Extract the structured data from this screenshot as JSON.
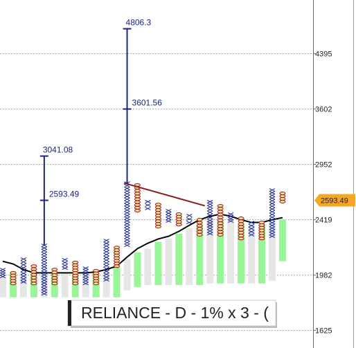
{
  "chart_data": {
    "type": "point_and_figure",
    "title": "RELIANCE - D - 1% x 3 - (",
    "ylim": [
      1525,
      5330
    ],
    "yticks": [
      1625,
      1982,
      2419,
      2952,
      3602,
      4395
    ],
    "log_scale": true,
    "grid": true,
    "x_color": "#1c2a8c",
    "o_color": "#9b1b1b",
    "columns": [
      {
        "kind": "X",
        "low": 1972,
        "high": 2022
      },
      {
        "kind": "O",
        "low": 1923,
        "high": 1998
      },
      {
        "kind": "X",
        "low": 1934,
        "high": 2100
      },
      {
        "kind": "O",
        "low": 1923,
        "high": 2047
      },
      {
        "kind": "X",
        "low": 1853,
        "high": 2206
      },
      {
        "kind": "O",
        "low": 1923,
        "high": 2022
      },
      {
        "kind": "X",
        "low": 2032,
        "high": 2095
      },
      {
        "kind": "O",
        "low": 1923,
        "high": 2074
      },
      {
        "kind": "X",
        "low": 1923,
        "high": 2032
      },
      {
        "kind": "O",
        "low": 1923,
        "high": 2013
      },
      {
        "kind": "X",
        "low": 1948,
        "high": 2245
      },
      {
        "kind": "O",
        "low": 2047,
        "high": 2189
      },
      {
        "kind": "X",
        "low": 2206,
        "high": 2760
      },
      {
        "kind": "O",
        "low": 2499,
        "high": 2741
      },
      {
        "kind": "X",
        "low": 2518,
        "high": 2581
      },
      {
        "kind": "O",
        "low": 2359,
        "high": 2555
      },
      {
        "kind": "X",
        "low": 2407,
        "high": 2499
      },
      {
        "kind": "O",
        "low": 2377,
        "high": 2468
      },
      {
        "kind": "X",
        "low": 2395,
        "high": 2455
      },
      {
        "kind": "O",
        "low": 2291,
        "high": 2419
      },
      {
        "kind": "X",
        "low": 2300,
        "high": 2581
      },
      {
        "kind": "O",
        "low": 2291,
        "high": 2543
      },
      {
        "kind": "X",
        "low": 2407,
        "high": 2468
      },
      {
        "kind": "O",
        "low": 2261,
        "high": 2431
      },
      {
        "kind": "X",
        "low": 2291,
        "high": 2395
      },
      {
        "kind": "O",
        "low": 2261,
        "high": 2395
      },
      {
        "kind": "X",
        "low": 2279,
        "high": 2692
      },
      {
        "kind": "O",
        "low": 2581,
        "high": 2659
      }
    ],
    "band_colors": [
      "#e6e6e6",
      "#98f598"
    ],
    "band_low": [
      1830,
      1830,
      1830,
      1830,
      1830,
      1830,
      1830,
      1830,
      1830,
      1830,
      1830,
      1830,
      1877,
      1899,
      1912,
      1912,
      1912,
      1912,
      1912,
      1912,
      1923,
      1923,
      1923,
      1923,
      1923,
      1923,
      1942,
      2083
    ],
    "band_high": [
      1972,
      1998,
      1998,
      1998,
      1998,
      1998,
      1998,
      1998,
      1998,
      1998,
      1998,
      2047,
      2100,
      2151,
      2180,
      2233,
      2261,
      2300,
      2349,
      2377,
      2419,
      2419,
      2407,
      2377,
      2377,
      2377,
      2407,
      2419
    ],
    "ma": [
      2083,
      2063,
      2022,
      1998,
      1998,
      1998,
      1998,
      1998,
      1998,
      2005,
      2022,
      2047,
      2115,
      2180,
      2223,
      2257,
      2279,
      2320,
      2371,
      2419,
      2449,
      2468,
      2449,
      2419,
      2395,
      2395,
      2419,
      2437
    ],
    "ma_color": "#000000",
    "trend": {
      "x": [
        11.7,
        19.5
      ],
      "values": [
        2760,
        2543
      ],
      "color": "#8b1a1a"
    },
    "targets": [
      {
        "column": 4,
        "values": [
          3041.08,
          2593.49
        ]
      },
      {
        "column": 12,
        "values": [
          4806.3,
          3601.56
        ]
      }
    ],
    "target_color": "#1a237e",
    "last_price": 2593.49,
    "last_price_color": "#f5a623"
  }
}
